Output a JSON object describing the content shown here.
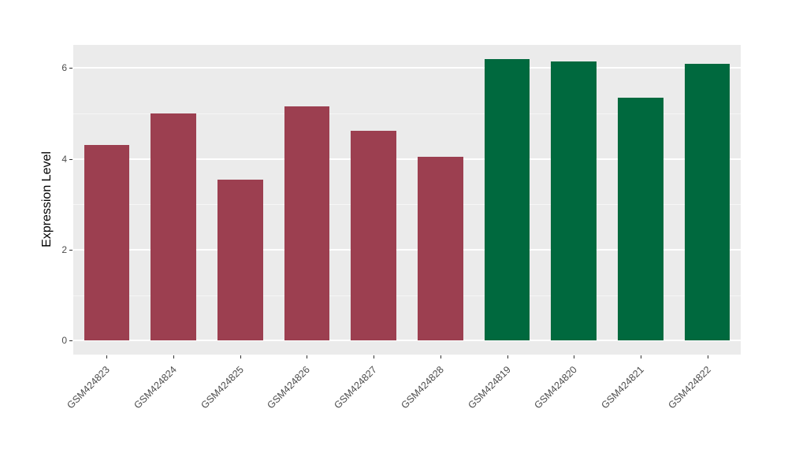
{
  "chart_data": {
    "type": "bar",
    "title": "",
    "xlabel": "",
    "ylabel": "Expression Level",
    "categories": [
      "GSM424823",
      "GSM424824",
      "GSM424825",
      "GSM424826",
      "GSM424827",
      "GSM424828",
      "GSM424819",
      "GSM424820",
      "GSM424821",
      "GSM424822"
    ],
    "values": [
      4.3,
      5.0,
      3.55,
      5.15,
      4.62,
      4.05,
      6.2,
      6.15,
      5.35,
      6.1
    ],
    "bar_colors": [
      "#9C3F50",
      "#9C3F50",
      "#9C3F50",
      "#9C3F50",
      "#9C3F50",
      "#9C3F50",
      "#00693E",
      "#00693E",
      "#00693E",
      "#00693E"
    ],
    "ylim": [
      0,
      6.2
    ],
    "panel_value_range": [
      -0.31,
      6.51
    ],
    "y_major_ticks": [
      0,
      2,
      4,
      6
    ],
    "y_minor_ticks": [
      1,
      3,
      5
    ],
    "grid": "on",
    "legend_position": "none",
    "panel_background": "#EBEBEB",
    "gridline_color": "#FFFFFF",
    "tick_label_color": "#4D4D4D",
    "bar_width_fraction": 0.68
  },
  "layout": {
    "note": "static ggplot-style bar chart, no interactive controls visible"
  }
}
